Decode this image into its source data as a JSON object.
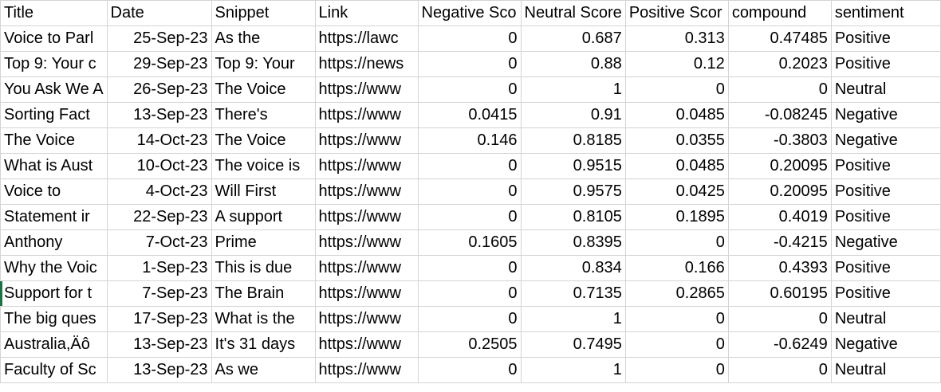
{
  "columns": [
    "Title",
    "Date",
    "Snippet",
    "Link",
    "Negative Sco",
    "Neutral Score",
    "Positive Scor",
    "compound",
    "sentiment"
  ],
  "rows": [
    [
      "Voice to Parl",
      "25-Sep-23",
      "As the",
      "https://lawc",
      "0",
      "0.687",
      "0.313",
      "0.47485",
      "Positive"
    ],
    [
      "Top 9: Your c",
      "29-Sep-23",
      "Top 9: Your",
      "https://news",
      "0",
      "0.88",
      "0.12",
      "0.2023",
      "Positive"
    ],
    [
      "You Ask We A",
      "26-Sep-23",
      "The Voice",
      "https://www",
      "0",
      "1",
      "0",
      "0",
      "Neutral"
    ],
    [
      "Sorting Fact",
      "13-Sep-23",
      "There's",
      "https://www",
      "0.0415",
      "0.91",
      "0.0485",
      "-0.08245",
      "Negative"
    ],
    [
      "The Voice",
      "14-Oct-23",
      "The Voice",
      "https://www",
      "0.146",
      "0.8185",
      "0.0355",
      "-0.3803",
      "Negative"
    ],
    [
      "What is Aust",
      "10-Oct-23",
      "The voice is",
      "https://www",
      "0",
      "0.9515",
      "0.0485",
      "0.20095",
      "Positive"
    ],
    [
      "Voice to",
      "4-Oct-23",
      "Will First",
      "https://www",
      "0",
      "0.9575",
      "0.0425",
      "0.20095",
      "Positive"
    ],
    [
      "Statement ir",
      "22-Sep-23",
      "A support",
      "https://www",
      "0",
      "0.8105",
      "0.1895",
      "0.4019",
      "Positive"
    ],
    [
      "Anthony",
      "7-Oct-23",
      "Prime",
      "https://www",
      "0.1605",
      "0.8395",
      "0",
      "-0.4215",
      "Negative"
    ],
    [
      "Why the Voic",
      "1-Sep-23",
      "This is due",
      "https://www",
      "0",
      "0.834",
      "0.166",
      "0.4393",
      "Positive"
    ],
    [
      "Support for t",
      "7-Sep-23",
      "The Brain",
      "https://www",
      "0",
      "0.7135",
      "0.2865",
      "0.60195",
      "Positive"
    ],
    [
      "The big ques",
      "17-Sep-23",
      "What is the",
      "https://www",
      "0",
      "1",
      "0",
      "0",
      "Neutral"
    ],
    [
      "Australia,Äô",
      "13-Sep-23",
      "It's 31 days",
      "https://www",
      "0.2505",
      "0.7495",
      "0",
      "-0.6249",
      "Negative"
    ],
    [
      "Faculty of Sc",
      "13-Sep-23",
      "As we",
      "https://www",
      "0",
      "1",
      "0",
      "0",
      "Neutral"
    ]
  ],
  "colors": {
    "gridline": "#d4d4d4",
    "active_row_marker": "#1e7145"
  }
}
